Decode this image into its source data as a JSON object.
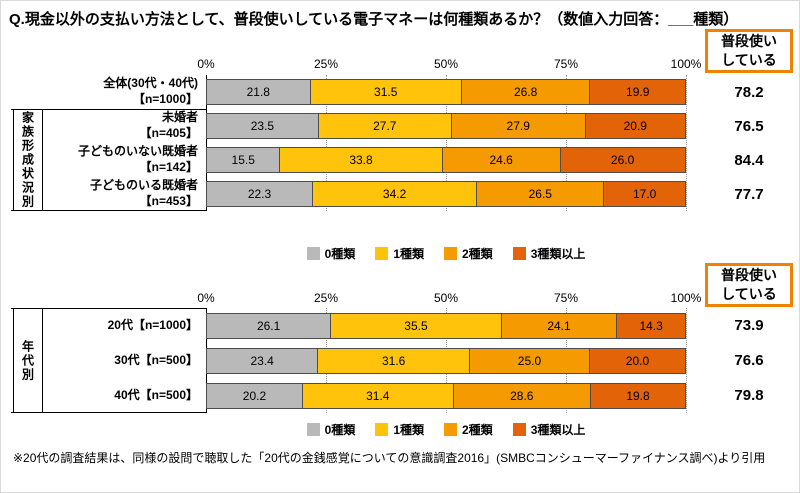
{
  "title": "Q.現金以外の支払い方法として、普段使いしている電子マネーは何種類あるか？（数値入力回答：___種類）",
  "usage_header": "普段使い\nしている",
  "axis_ticks": [
    "0%",
    "25%",
    "50%",
    "75%",
    "100%"
  ],
  "legend": [
    "0種類",
    "1種類",
    "2種類",
    "3種類以上"
  ],
  "colors": {
    "series": [
      "#b9b9b9",
      "#ffc30b",
      "#f59a00",
      "#e36309"
    ],
    "usage_box_border": "#ef8200",
    "text": "#000000"
  },
  "chart_data": [
    {
      "type": "bar",
      "stacked": true,
      "orientation": "horizontal",
      "x_range": [
        0,
        100
      ],
      "x_ticks": [
        "0%",
        "25%",
        "50%",
        "75%",
        "100%"
      ],
      "group_label": "家族形成状況別",
      "categories": [
        [
          "全体(30代・40代)",
          "【n=1000】"
        ],
        [
          "未婚者",
          "【n=405】"
        ],
        [
          "子どものいない既婚者",
          "【n=142】"
        ],
        [
          "子どものいる既婚者",
          "【n=453】"
        ]
      ],
      "series": [
        {
          "name": "0種類",
          "values": [
            21.8,
            23.5,
            15.5,
            22.3
          ]
        },
        {
          "name": "1種類",
          "values": [
            31.5,
            27.7,
            33.8,
            34.2
          ]
        },
        {
          "name": "2種類",
          "values": [
            26.8,
            27.9,
            24.6,
            26.5
          ]
        },
        {
          "name": "3種類以上",
          "values": [
            19.9,
            20.9,
            26.0,
            17.0
          ]
        }
      ],
      "usage_label": "普段使いしている",
      "usage_values": [
        78.2,
        76.5,
        84.4,
        77.7
      ]
    },
    {
      "type": "bar",
      "stacked": true,
      "orientation": "horizontal",
      "x_range": [
        0,
        100
      ],
      "x_ticks": [
        "0%",
        "25%",
        "50%",
        "75%",
        "100%"
      ],
      "group_label": "年代別",
      "categories": [
        [
          "20代【n=1000】"
        ],
        [
          "30代【n=500】"
        ],
        [
          "40代【n=500】"
        ]
      ],
      "series": [
        {
          "name": "0種類",
          "values": [
            26.1,
            23.4,
            20.2
          ]
        },
        {
          "name": "1種類",
          "values": [
            35.5,
            31.6,
            31.4
          ]
        },
        {
          "name": "2種類",
          "values": [
            24.1,
            25.0,
            28.6
          ]
        },
        {
          "name": "3種類以上",
          "values": [
            14.3,
            20.0,
            19.8
          ]
        }
      ],
      "usage_label": "普段使いしている",
      "usage_values": [
        73.9,
        76.6,
        79.8
      ]
    }
  ],
  "footnote": "※20代の調査結果は、同様の設問で聴取した「20代の金銭感覚についての意識調査2016」(SMBCコンシューマーファイナンス調べ)より引用"
}
